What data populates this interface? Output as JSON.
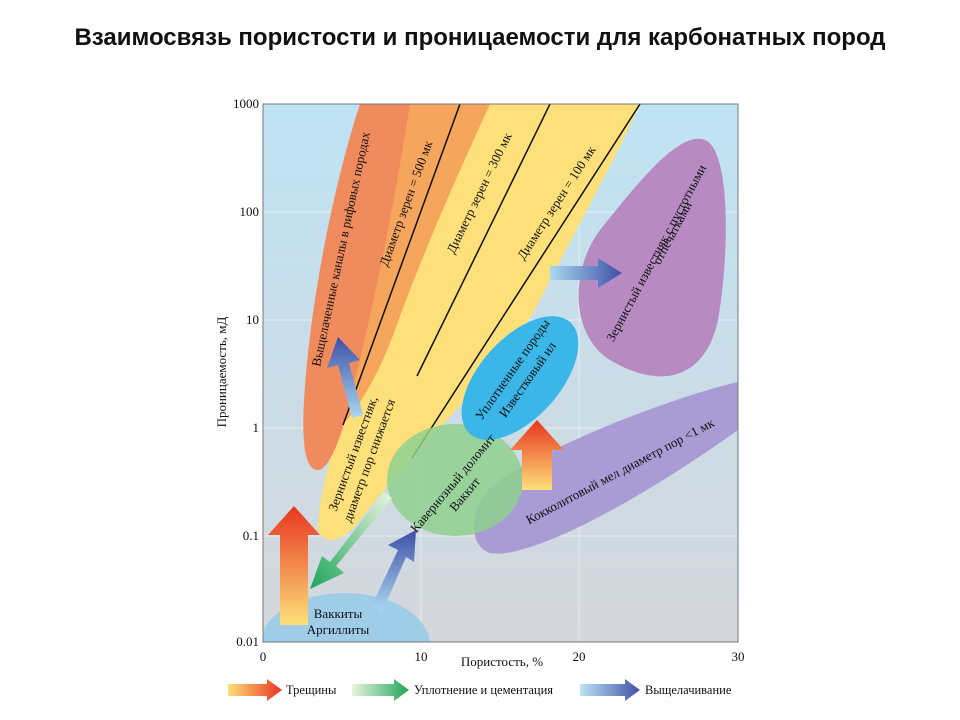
{
  "title": "Взаимосвязь пористости и проницаемости для карбонатных пород",
  "axes": {
    "y_label": "Проницаемость, мД",
    "y_ticks": [
      "1000",
      "100",
      "10",
      "1",
      "0.1",
      "0.01"
    ],
    "x_label": "Пористость, %",
    "x_ticks": [
      "0",
      "10",
      "20",
      "30"
    ]
  },
  "regions": {
    "reef_channels": "Выщелаченные каналы в рифовых породах",
    "grain_500": "Диаметр зерен = 500 мк",
    "grain_300": "Диаметр зерен = 300 мк",
    "grain_100": "Диаметр зерен = 100 мк",
    "grainy_line1": "Зернистый известняк,",
    "grainy_line2": "диаметр пор снижается",
    "compacted_line1": "Уплотненные породы",
    "compacted_line2": "Известковый ил",
    "cavernous_line1": "Кавернозный доломит",
    "cavernous_line2": "Ваккит",
    "molds_line1": "Зернистый известняк с пустотными",
    "molds_line2": "отпечатками",
    "chalk": "Кокколитовый мел диаметр пор <1 мк",
    "wackite_line1": "Ваккиты",
    "wackite_line2": "Аргиллиты"
  },
  "legend": {
    "fractures": "Трещины",
    "compaction": "Уплотнение и цементация",
    "leaching": "Выщелачивание"
  },
  "colors": {
    "bg_top": "#bfe3f3",
    "bg_bottom": "#d5d7dc",
    "reef": "#f08b5e",
    "grain500": "#f6a65c",
    "grain_zone": "#fde07a",
    "molds": "#b78bc2",
    "compacted": "#3ab6e8",
    "cavernous": "#8fd08e",
    "chalk": "#a99bd3",
    "wackite": "#9fcde8"
  }
}
